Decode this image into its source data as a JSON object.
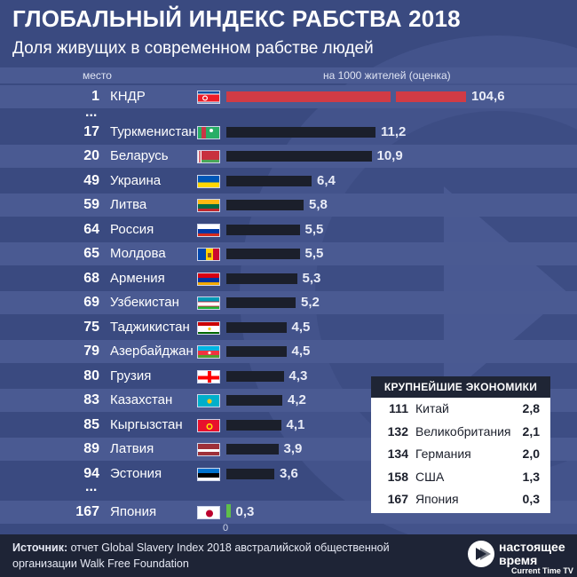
{
  "title": "ГЛОБАЛЬНЫЙ ИНДЕКС РАБСТВА 2018",
  "subtitle": "Доля живущих в современном рабстве людей",
  "rank_label": "место",
  "unit_label": "на 1000 жителей (оценка)",
  "chart_data": {
    "type": "bar",
    "title": "ГЛОБАЛЬНЫЙ ИНДЕКС РАБСТВА 2018",
    "subtitle": "Доля живущих в современном рабстве людей",
    "orientation": "horizontal",
    "unit": "на 1000 жителей (оценка)",
    "axis_zero_label": "0",
    "ellipsis": "...",
    "highlight_color": "#d13b45",
    "bar_color": "#1b1f2b",
    "rows": [
      {
        "rank": "1",
        "country": "КНДР",
        "value": 104.6,
        "value_label": "104,6",
        "flag": "north-korea",
        "highlight": true,
        "axis_break": true
      },
      {
        "rank": "17",
        "country": "Туркменистан",
        "value": 11.2,
        "value_label": "11,2",
        "flag": "turkmenistan"
      },
      {
        "rank": "20",
        "country": "Беларусь",
        "value": 10.9,
        "value_label": "10,9",
        "flag": "belarus"
      },
      {
        "rank": "49",
        "country": "Украина",
        "value": 6.4,
        "value_label": "6,4",
        "flag": "ukraine"
      },
      {
        "rank": "59",
        "country": "Литва",
        "value": 5.8,
        "value_label": "5,8",
        "flag": "lithuania"
      },
      {
        "rank": "64",
        "country": "Россия",
        "value": 5.5,
        "value_label": "5,5",
        "flag": "russia"
      },
      {
        "rank": "65",
        "country": "Молдова",
        "value": 5.5,
        "value_label": "5,5",
        "flag": "moldova"
      },
      {
        "rank": "68",
        "country": "Армения",
        "value": 5.3,
        "value_label": "5,3",
        "flag": "armenia"
      },
      {
        "rank": "69",
        "country": "Узбекистан",
        "value": 5.2,
        "value_label": "5,2",
        "flag": "uzbekistan"
      },
      {
        "rank": "75",
        "country": "Таджикистан",
        "value": 4.5,
        "value_label": "4,5",
        "flag": "tajikistan"
      },
      {
        "rank": "79",
        "country": "Азербайджан",
        "value": 4.5,
        "value_label": "4,5",
        "flag": "azerbaijan"
      },
      {
        "rank": "80",
        "country": "Грузия",
        "value": 4.3,
        "value_label": "4,3",
        "flag": "georgia"
      },
      {
        "rank": "83",
        "country": "Казахстан",
        "value": 4.2,
        "value_label": "4,2",
        "flag": "kazakhstan"
      },
      {
        "rank": "85",
        "country": "Кыргызстан",
        "value": 4.1,
        "value_label": "4,1",
        "flag": "kyrgyzstan"
      },
      {
        "rank": "89",
        "country": "Латвия",
        "value": 3.9,
        "value_label": "3,9",
        "flag": "latvia"
      },
      {
        "rank": "94",
        "country": "Эстония",
        "value": 3.6,
        "value_label": "3,6",
        "flag": "estonia"
      },
      {
        "rank": "167",
        "country": "Япония",
        "value": 0.3,
        "value_label": "0,3",
        "flag": "japan",
        "highlight_green": true
      }
    ]
  },
  "economies": {
    "title": "КРУПНЕЙШИЕ ЭКОНОМИКИ",
    "rows": [
      {
        "rank": "111",
        "country": "Китай",
        "value": "2,8"
      },
      {
        "rank": "132",
        "country": "Великобритания",
        "value": "2,1"
      },
      {
        "rank": "134",
        "country": "Германия",
        "value": "2,0"
      },
      {
        "rank": "158",
        "country": "США",
        "value": "1,3"
      },
      {
        "rank": "167",
        "country": "Япония",
        "value": "0,3"
      }
    ]
  },
  "footer": {
    "source_label": "Источник:",
    "source_text_1": " отчет Global Slavery Index 2018 австралийской общественной",
    "source_text_2": "организации Walk Free Foundation",
    "logo_line_1": "настоящее",
    "logo_line_2": "время",
    "logo_line_3": "Current Time TV"
  },
  "colors": {
    "background": "#3a4a80",
    "stripe": "#4a5a92",
    "footer": "#1e2436",
    "green_bar": "#5fbf4a"
  }
}
